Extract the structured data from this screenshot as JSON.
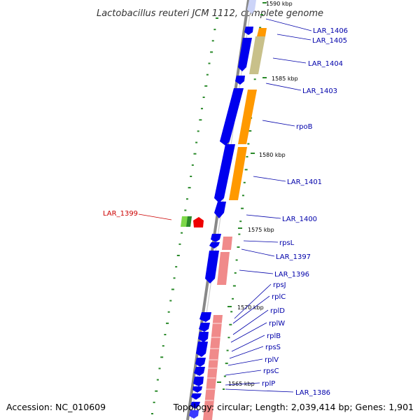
{
  "title": "Lactobacillus reuteri JCM 1112, complete genome",
  "footer": {
    "accession": "Accession: NC_010609",
    "topology": "Topology: circular; Length: 2,039,414 bp; Genes: 1,901"
  },
  "kbp_marks": [
    "1590 kbp",
    "1585 kbp",
    "1580 kbp",
    "1575 kbp",
    "1570 kbp",
    "1565 kbp"
  ],
  "gene_labels": [
    {
      "name": "LAR_1406",
      "color": "blue"
    },
    {
      "name": "LAR_1405",
      "color": "blue"
    },
    {
      "name": "LAR_1404",
      "color": "blue"
    },
    {
      "name": "LAR_1403",
      "color": "blue"
    },
    {
      "name": "rpoB",
      "color": "blue"
    },
    {
      "name": "LAR_1401",
      "color": "blue"
    },
    {
      "name": "LAR_1400",
      "color": "blue"
    },
    {
      "name": "LAR_1399",
      "color": "red"
    },
    {
      "name": "rpsL",
      "color": "blue"
    },
    {
      "name": "LAR_1397",
      "color": "blue"
    },
    {
      "name": "LAR_1396",
      "color": "blue"
    },
    {
      "name": "rpsJ",
      "color": "blue"
    },
    {
      "name": "rplC",
      "color": "blue"
    },
    {
      "name": "rplD",
      "color": "blue"
    },
    {
      "name": "rplW",
      "color": "blue"
    },
    {
      "name": "rplB",
      "color": "blue"
    },
    {
      "name": "rpsS",
      "color": "blue"
    },
    {
      "name": "rplV",
      "color": "blue"
    },
    {
      "name": "rpsC",
      "color": "blue"
    },
    {
      "name": "rplP",
      "color": "blue"
    },
    {
      "name": "LAR_1386",
      "color": "blue"
    }
  ],
  "colors": {
    "backbone": "#888888",
    "cds_forward": "#0000ee",
    "rrna_orange": "#ff9900",
    "olive": "#c8c08a",
    "pink": "#f08a8a",
    "gc_green": "#2a8a2a",
    "highlight": "#ee0000",
    "label_blue": "#0000aa",
    "label_red": "#cc0000"
  }
}
